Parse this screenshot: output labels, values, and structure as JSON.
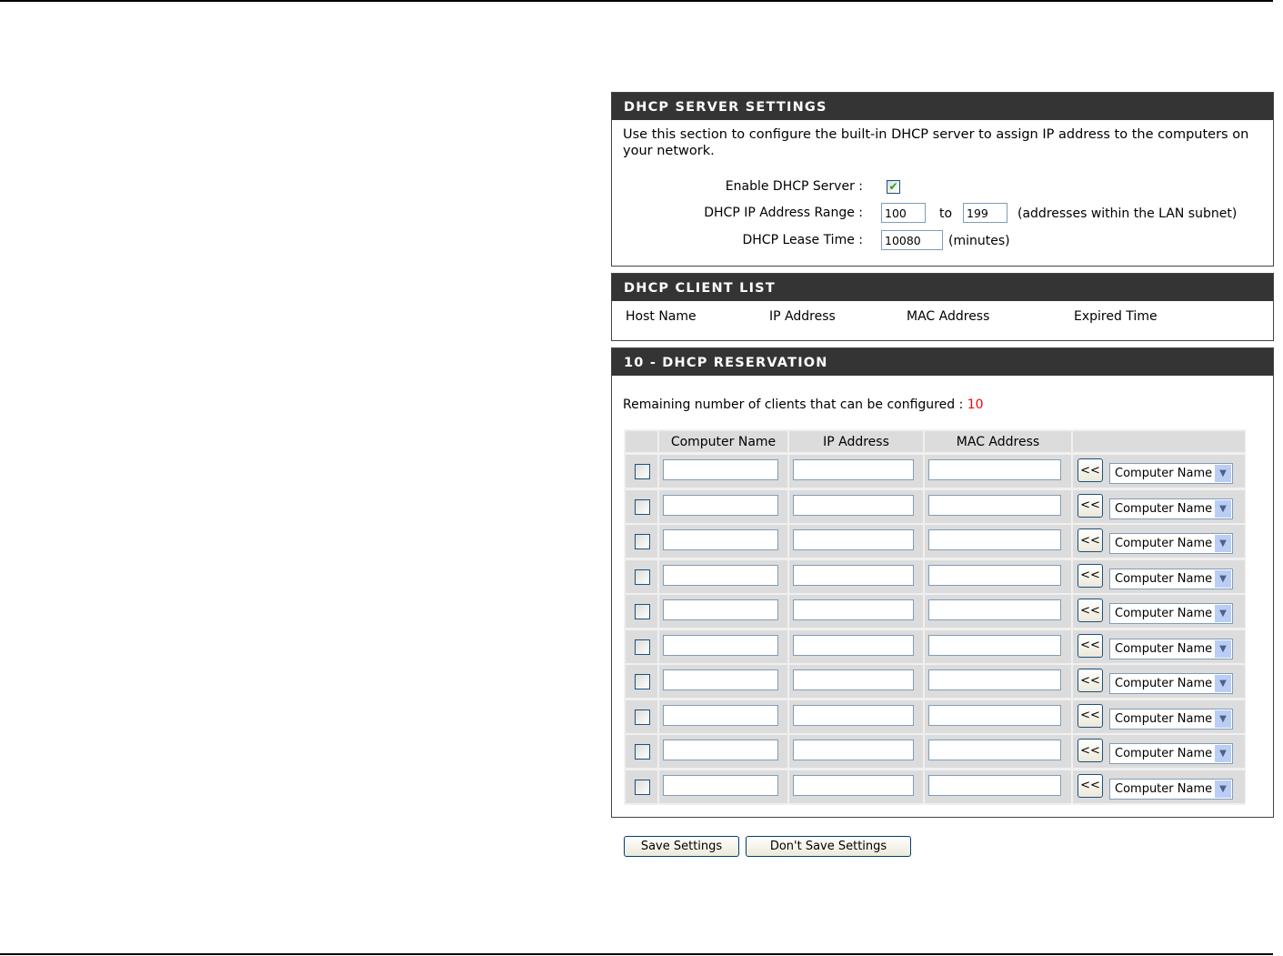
{
  "server": {
    "title": "DHCP SERVER SETTINGS",
    "desc": "Use this section to configure the built-in DHCP server to assign IP address to the computers on your network.",
    "enable_label": "Enable DHCP Server :",
    "enable_checked": true,
    "range_label": "DHCP IP Address Range :",
    "range_start": "100",
    "to": "to",
    "range_end": "199",
    "range_note": "(addresses within the LAN subnet)",
    "lease_label": "DHCP Lease Time :",
    "lease_value": "10080",
    "lease_unit": "(minutes)"
  },
  "client_list": {
    "title": "DHCP CLIENT LIST",
    "columns": [
      "Host Name",
      "IP Address",
      "MAC Address",
      "Expired Time"
    ]
  },
  "reservation": {
    "title": "10 - DHCP RESERVATION",
    "remaining_label": "Remaining number of clients that can be configured :",
    "remaining_value": "10",
    "remaining_color": "#ff0000",
    "columns": [
      "Computer Name",
      "IP Address",
      "MAC Address"
    ],
    "copy_label": "<<",
    "select_value": "Computer Name",
    "rows": 10
  },
  "buttons": {
    "save": "Save Settings",
    "dont_save": "Don't Save Settings"
  }
}
